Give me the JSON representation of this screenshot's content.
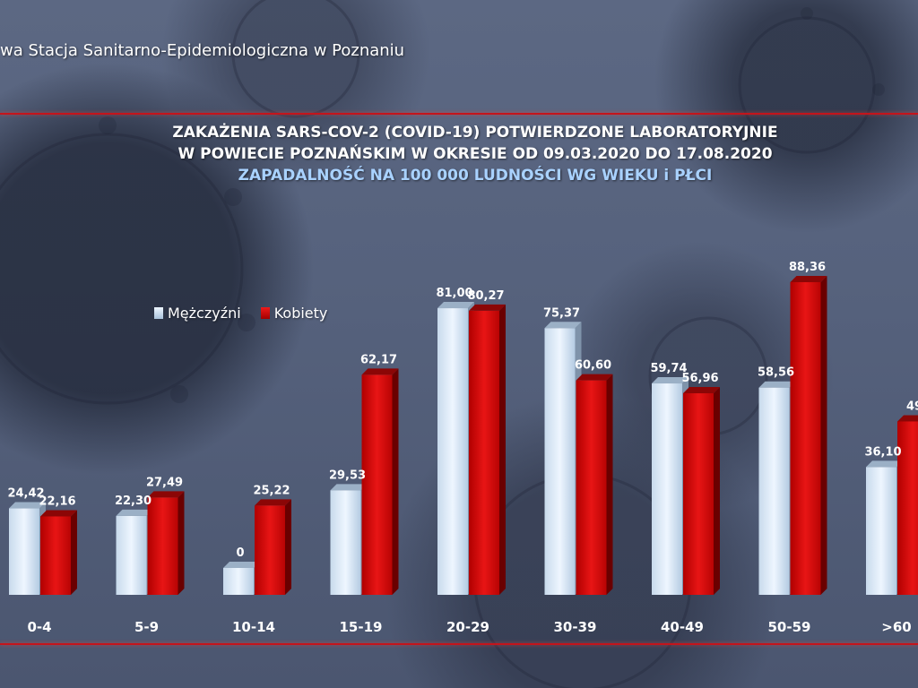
{
  "header": {
    "org_label": "wa Stacja Sanitarno-Epidemiologiczna w Poznaniu"
  },
  "title_lines": [
    "ZAKAŻENIA SARS-COV-2 (COVID-19) POTWIERDZONE LABORATORYJNIE",
    "W POWIECIE POZNAŃSKIM W OKRESIE OD 09.03.2020 DO 17.08.2020"
  ],
  "subtitle": "ZAPADALNOŚĆ NA 100 000 LUDNOŚCI WG WIEKU i PŁCI",
  "legend": {
    "men": "Mężczyźni",
    "women": "Kobiety"
  },
  "colors": {
    "men_top": "#eef6ff",
    "men_bottom": "#a9c2db",
    "women_top": "#f01a1a",
    "women_bottom": "#a30000",
    "rule": "#c4141b",
    "subtitle": "#a9d2ff"
  },
  "chart_data": {
    "type": "bar",
    "title": "ZAKAŻENIA SARS-COV-2 (COVID-19) POTWIERDZONE LABORATORYJNIE W POWIECIE POZNAŃSKIM W OKRESIE OD 09.03.2020 DO 17.08.2020",
    "subtitle": "ZAPADALNOŚĆ NA 100 000 LUDNOŚCI WG WIEKU i PŁCI",
    "categories": [
      "0-4",
      "5-9",
      "10-14",
      "15-19",
      "20-29",
      "30-39",
      "40-49",
      "50-59",
      ">60"
    ],
    "series": [
      {
        "name": "Mężczyźni",
        "values": [
          24.42,
          22.3,
          0,
          29.53,
          81.0,
          75.37,
          59.74,
          58.56,
          36.1
        ],
        "labels": [
          "24,42",
          "22,30",
          "0",
          "29,53",
          "81,00",
          "75,37",
          "59,74",
          "58,56",
          "36,10"
        ]
      },
      {
        "name": "Kobiety",
        "values": [
          22.16,
          27.49,
          25.22,
          62.17,
          80.27,
          60.6,
          56.96,
          88.36,
          49
        ],
        "labels": [
          "22,16",
          "27,49",
          "25,22",
          "62,17",
          "80,27",
          "60,60",
          "56,96",
          "88,36",
          "49"
        ]
      }
    ],
    "ylim": [
      0,
      100
    ],
    "grid": false,
    "legend_position": "top-left"
  }
}
